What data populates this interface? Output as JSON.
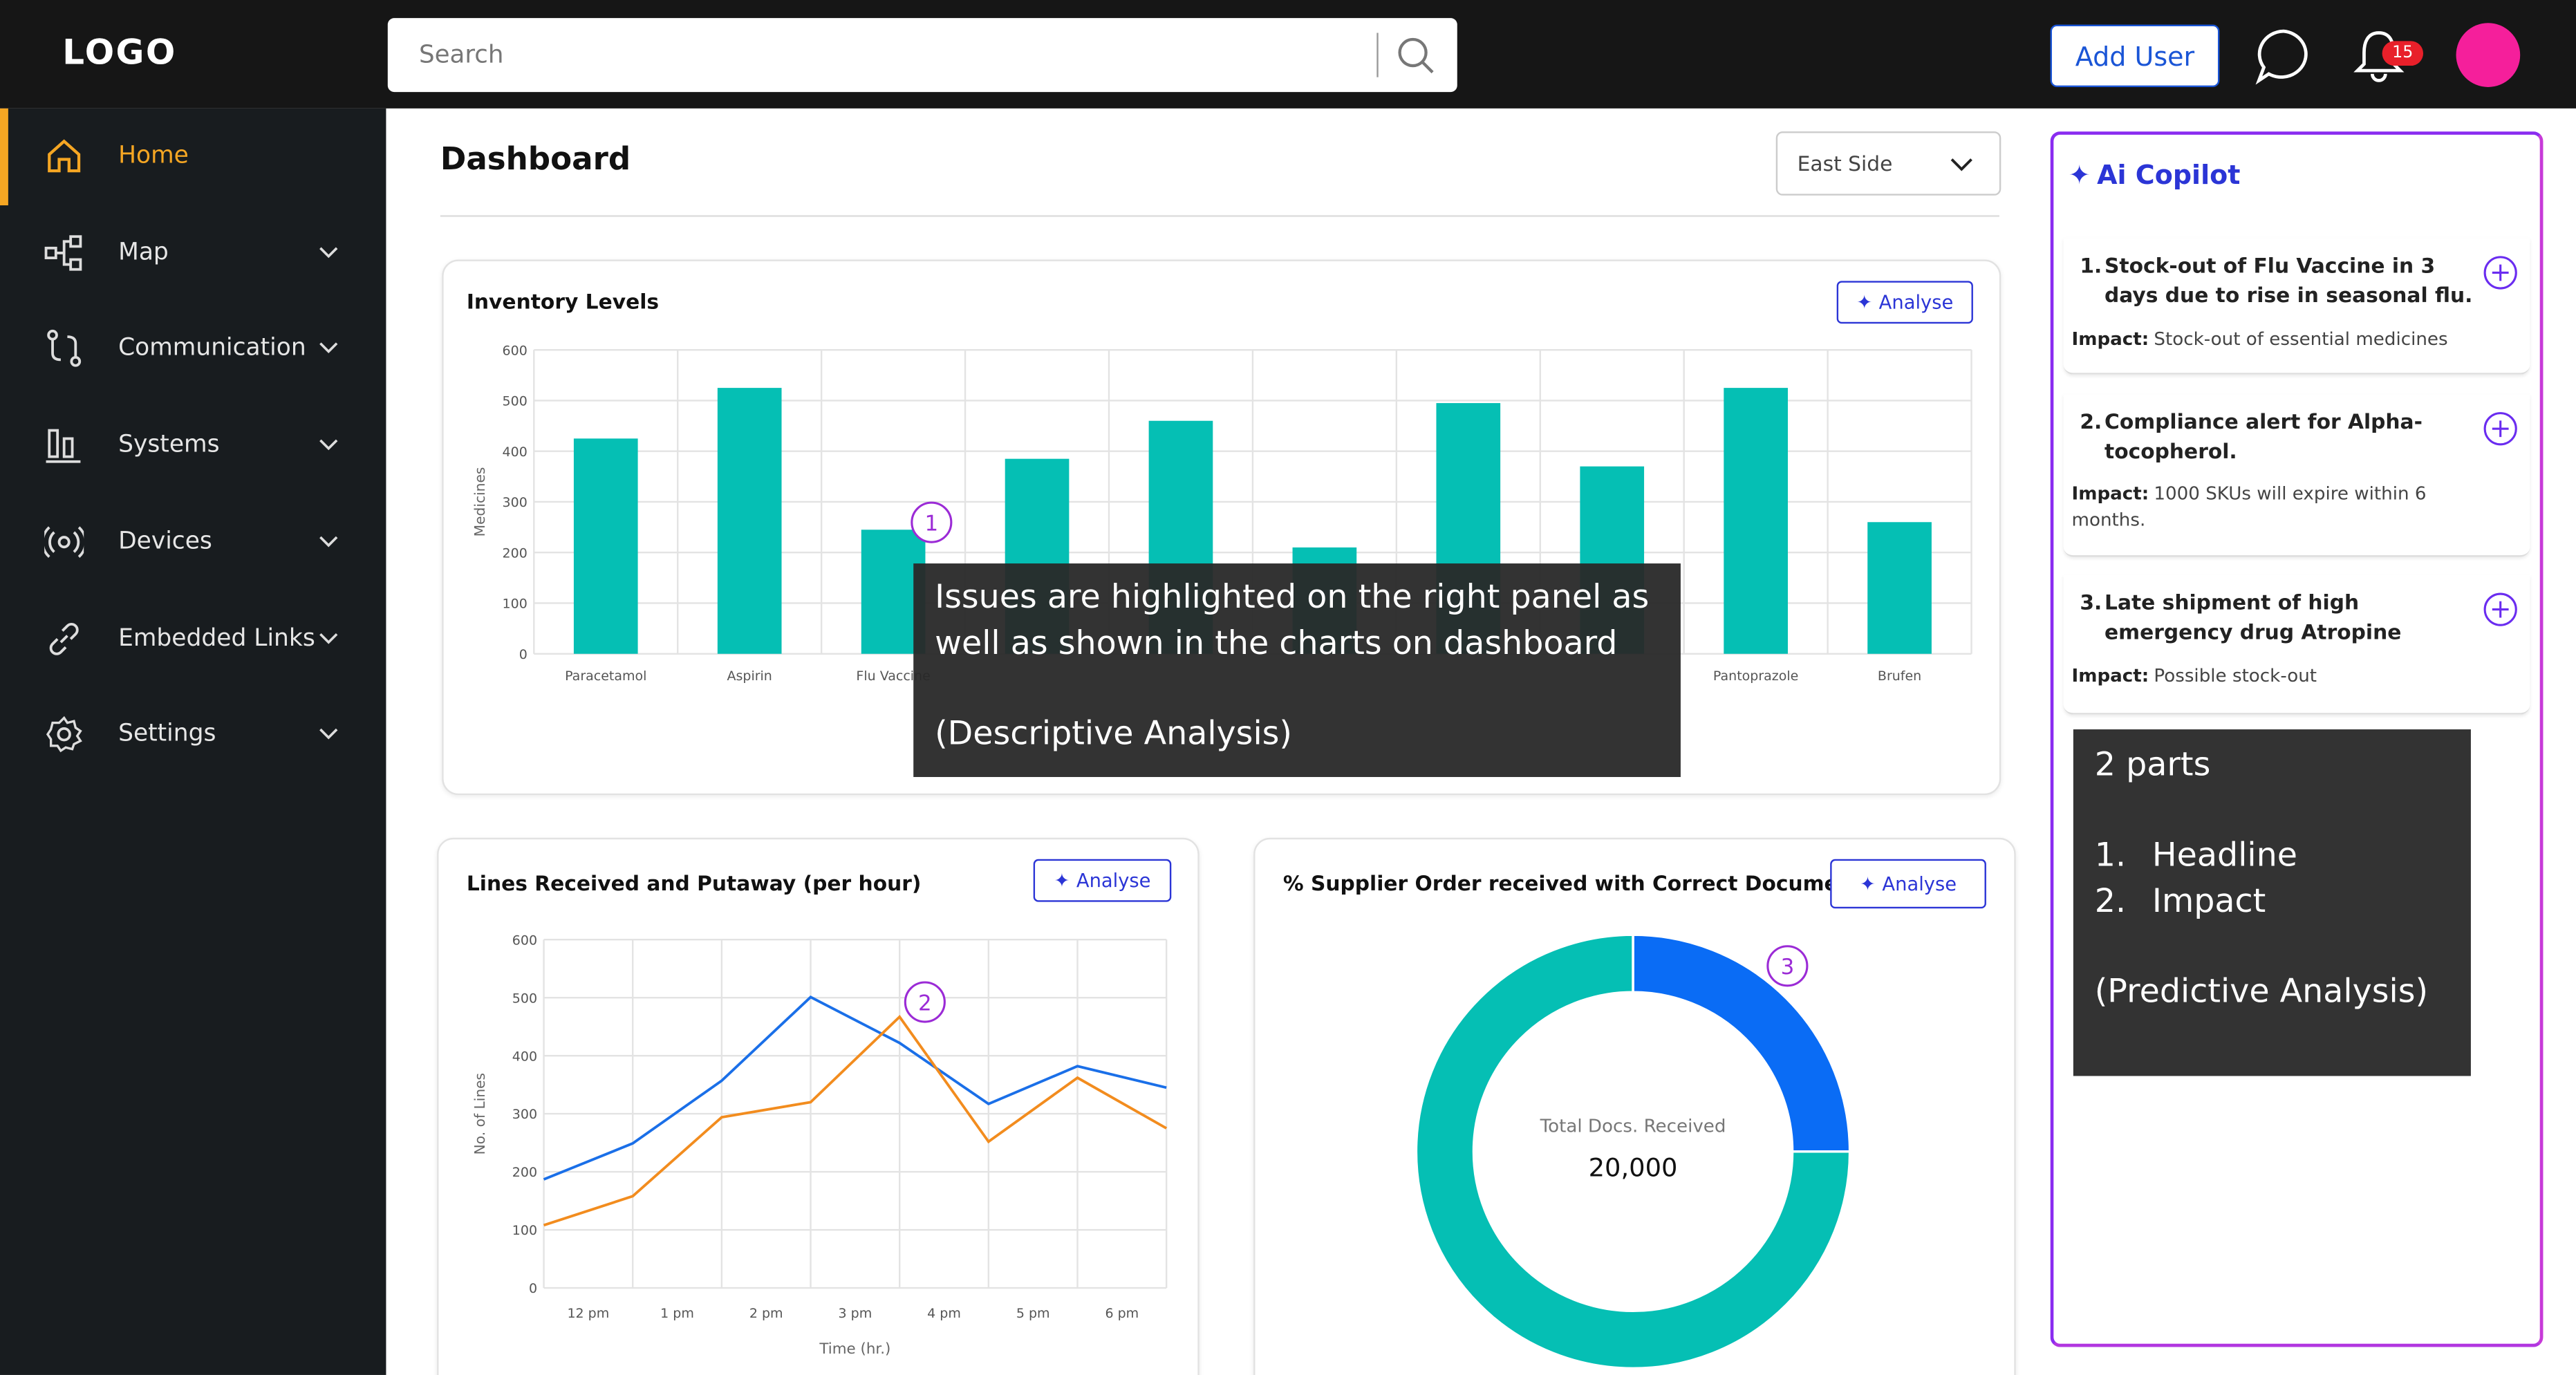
{
  "header": {
    "logo": "LOGO",
    "search_placeholder": "Search",
    "add_user": "Add User",
    "notifications": "15"
  },
  "sidebar": {
    "items": [
      "Home",
      "Map",
      "Communication",
      "Systems",
      "Devices",
      "Embedded Links",
      "Settings"
    ]
  },
  "dashboard": {
    "title": "Dashboard",
    "filter": "East Side",
    "analyse": "Analyse"
  },
  "chart_data": [
    {
      "type": "bar",
      "title": "Inventory Levels",
      "y_label": "Medicines",
      "categories": [
        "Paracetamol",
        "Aspirin",
        "Flu Vaccine",
        null,
        null,
        null,
        null,
        null,
        "Pantoprazole",
        "Brufen"
      ],
      "values": [
        425,
        525,
        245,
        385,
        460,
        210,
        495,
        370,
        525,
        260
      ],
      "color": "#05bfb4",
      "ylim": [
        0,
        600
      ],
      "yticks": [
        0,
        100,
        200,
        300,
        400,
        500,
        600
      ],
      "grid": true
    },
    {
      "type": "line",
      "title": "Lines Received and Putaway (per hour)",
      "y_label": "No. of Lines",
      "x_label": "Time (hr.)",
      "x": [
        0,
        1,
        2,
        3,
        4,
        5,
        6,
        7
      ],
      "xlim": [
        0,
        7
      ],
      "xticks": [
        {
          "value": 0.5,
          "label": "12 pm"
        },
        {
          "value": 1.5,
          "label": "1 pm"
        },
        {
          "value": 2.5,
          "label": "2 pm"
        },
        {
          "value": 3.5,
          "label": "3 pm"
        },
        {
          "value": 4.5,
          "label": "4 pm"
        },
        {
          "value": 5.5,
          "label": "5 pm"
        },
        {
          "value": 6.5,
          "label": "6 pm"
        }
      ],
      "series": [
        {
          "color": "#1a6fe8",
          "values": [
            187,
            249,
            357,
            501,
            422,
            317,
            382,
            345
          ]
        },
        {
          "color": "#f28c1e",
          "values": [
            108,
            158,
            294,
            320,
            467,
            252,
            362,
            275
          ]
        }
      ],
      "ylim": [
        0,
        600
      ],
      "yticks": [
        0,
        100,
        200,
        300,
        400,
        500,
        600
      ],
      "grid": true
    },
    {
      "type": "donut",
      "title": "% Supplier Order received with Correct Documen...",
      "values": [
        25,
        75
      ],
      "colors": [
        "#0a6cf5",
        "#05bfb4"
      ],
      "center_label": "Total Docs. Received",
      "center_value": "20,000"
    }
  ],
  "copilot": {
    "title": "Ai Copilot",
    "impact_label": "Impact:",
    "items": [
      {
        "number": "1.",
        "headline": "Stock-out of Flu Vaccine in 3 days due to rise in seasonal flu.",
        "impact": "Stock-out of essential medicines"
      },
      {
        "number": "2.",
        "headline": "Compliance alert for Alpha-tocopherol.",
        "impact": "1000 SKUs will expire within 6 months."
      },
      {
        "number": "3.",
        "headline": "Late shipment of high emergency drug Atropine",
        "impact": "Possible stock-out"
      }
    ]
  },
  "annotations": {
    "markers": [
      "1",
      "2",
      "3"
    ],
    "notes": [
      {
        "lines": [
          "Issues are highlighted on the right panel as",
          "well as shown in the charts on dashboard",
          "(Descriptive Analysis)"
        ]
      },
      {
        "lines": [
          "2 parts",
          "1.",
          "Headline",
          "2.",
          "Impact",
          "(Predictive Analysis)"
        ]
      }
    ]
  }
}
